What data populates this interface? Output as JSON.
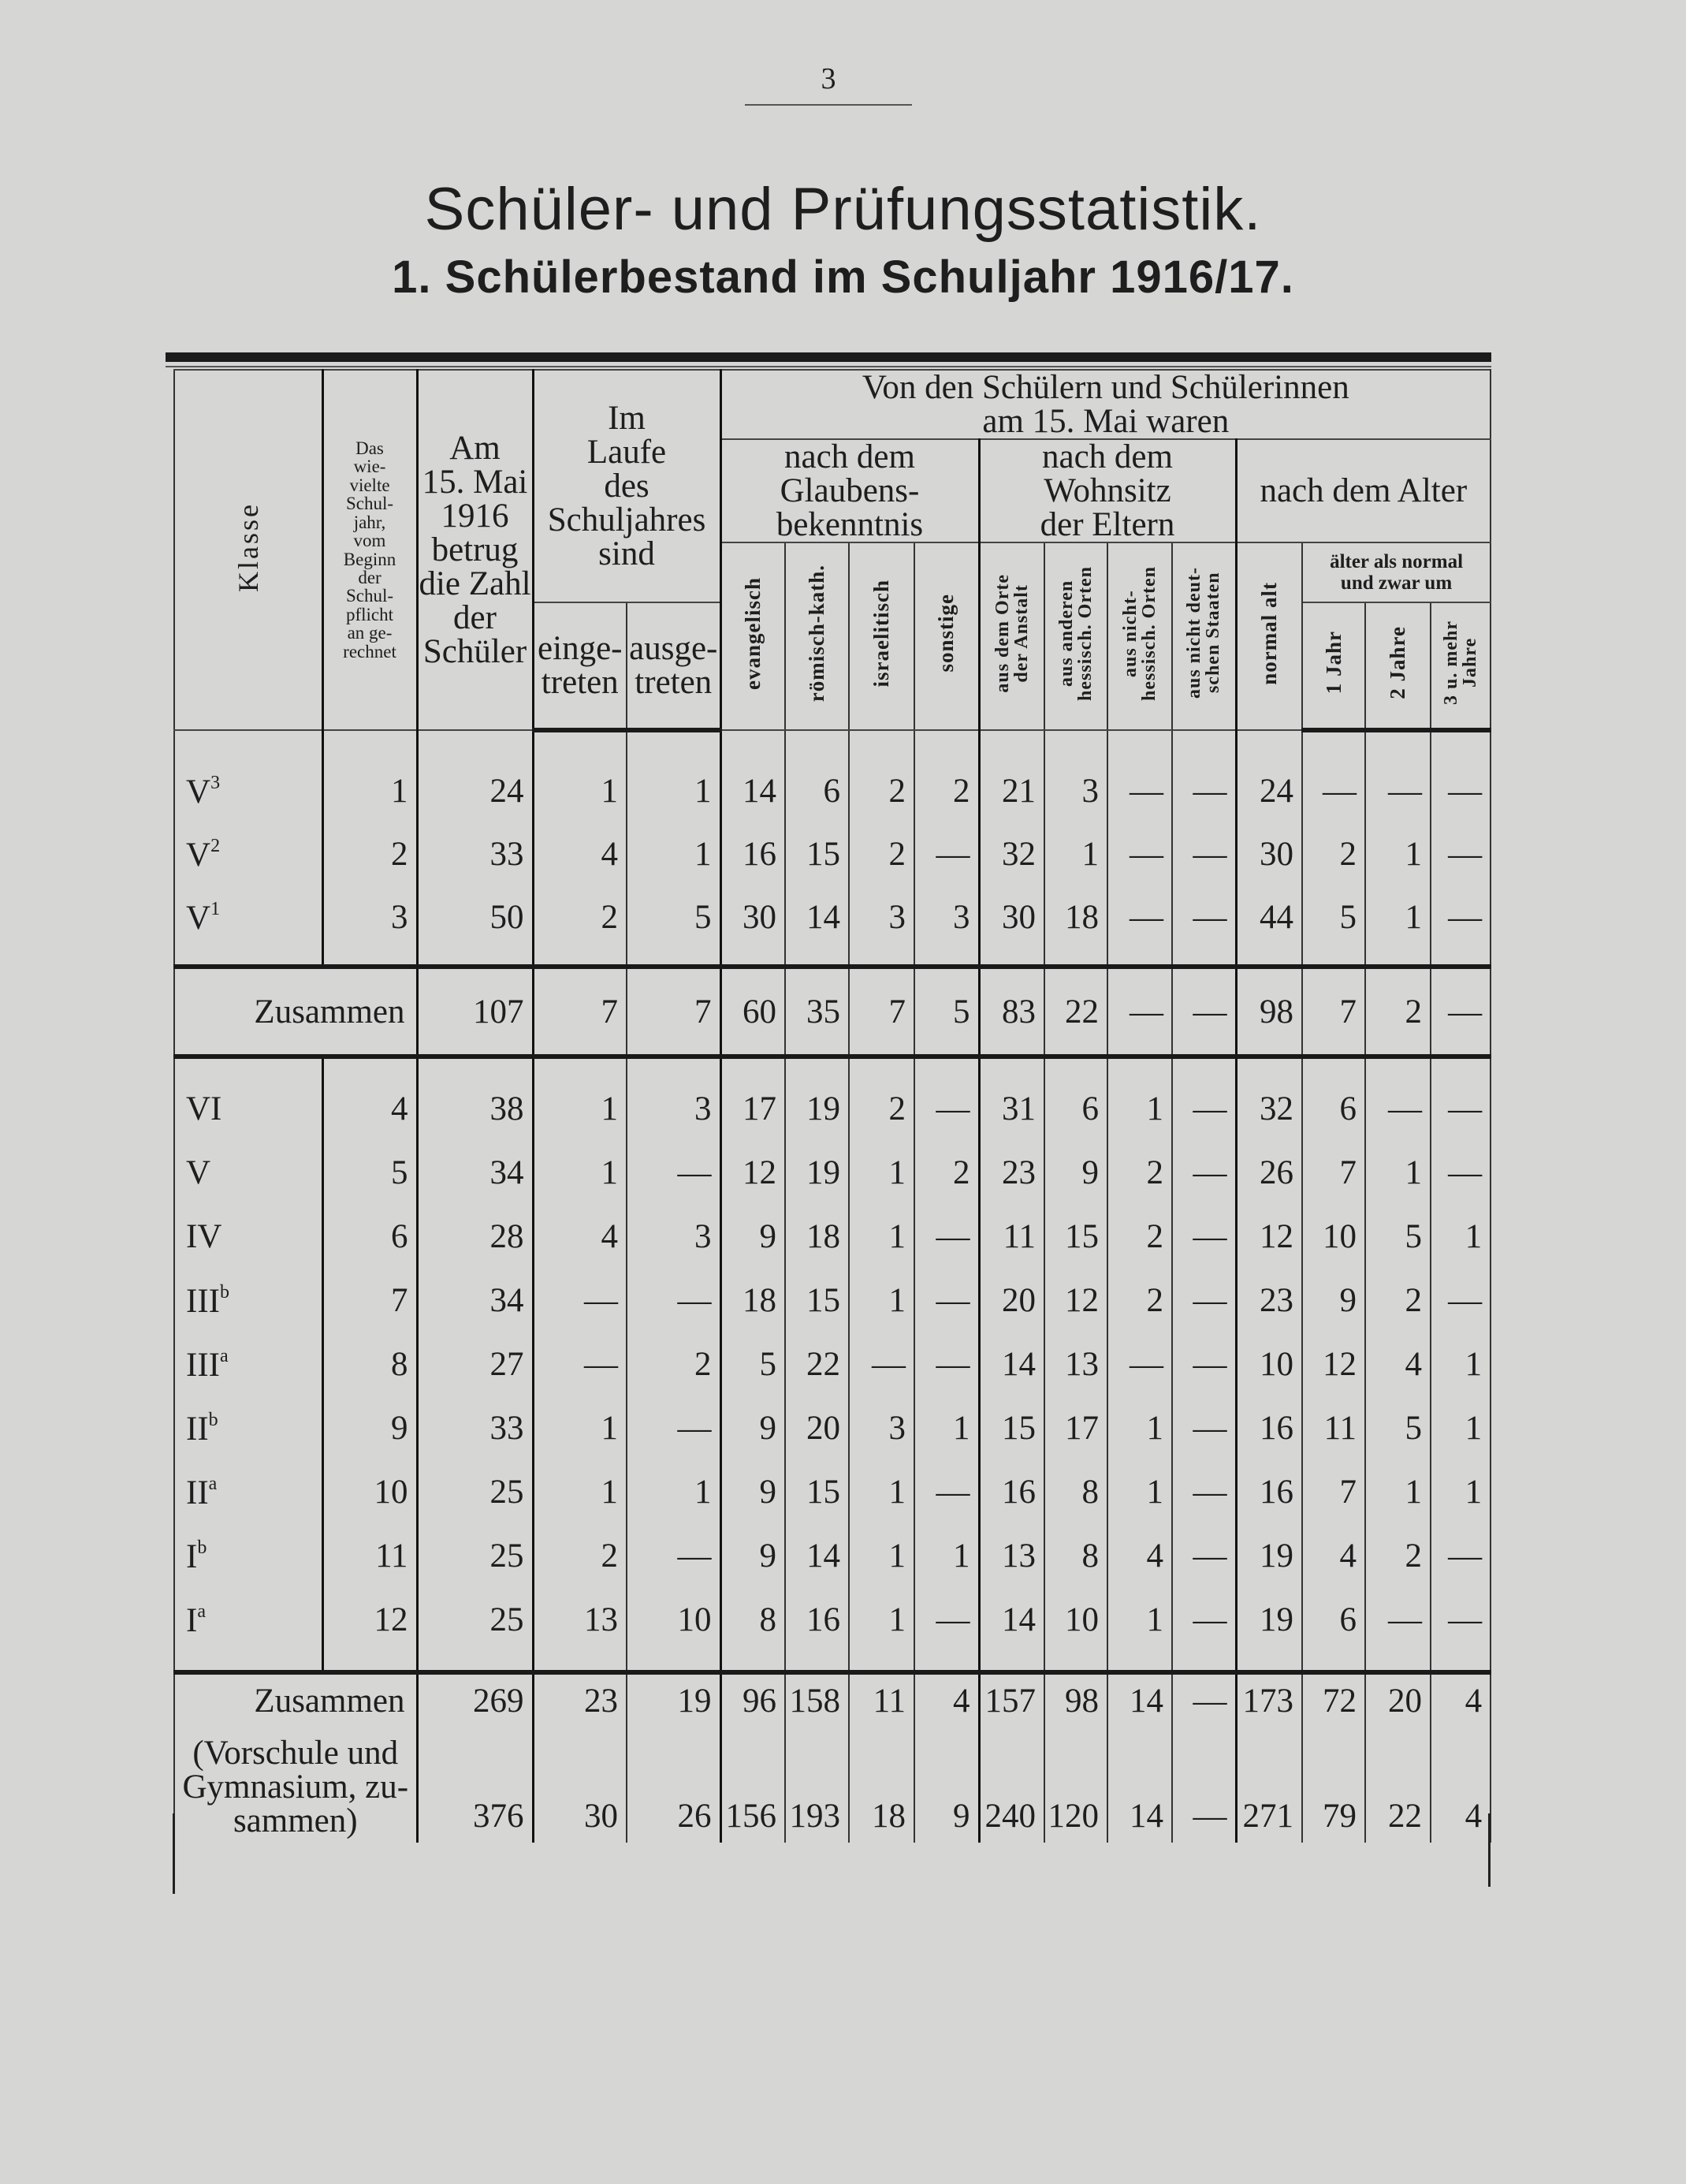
{
  "page_number": "3",
  "title": "Schüler- und Prüfungsstatistik.",
  "subtitle": "1. Schülerbestand im Schuljahr 1916/17.",
  "header": {
    "klasse": "Klasse",
    "schuljahr": "Das\nwie-\nvielte\nSchul-\njahr,\nvom\nBeginn\nder\nSchul-\npflicht\nan ge-\nrechnet",
    "zahl": "Am\n15. Mai\n1916\nbetrug\ndie Zahl\nder\nSchüler",
    "laufe": "Im\nLaufe\ndes\nSchuljahres\nsind",
    "eingetreten": "einge-\ntreten",
    "ausgetreten": "ausge-\ntreten",
    "von_den": "Von den Schülern und Schülerinnen\nam 15. Mai waren",
    "glauben": "nach dem Glaubens-\nbekenntnis",
    "wohnsitz": "nach dem Wohnsitz\nder Eltern",
    "alter": "nach dem Alter",
    "evangelisch": "evangelisch",
    "roemisch": "römisch-kath.",
    "israelitisch": "israelitisch",
    "sonstige": "sonstige",
    "orte": "aus dem Orte\nder Anstalt",
    "hessisch": "aus anderen\nhessisch. Orten",
    "nichthessisch": "aus nicht-\nhessisch. Orten",
    "nichtdeutsch": "aus nicht deut-\nschen Staaten",
    "normal": "normal alt",
    "aelter": "älter als normal\nund zwar um",
    "jahr1": "1 Jahr",
    "jahr2": "2 Jahre",
    "jahr3": "3 u. mehr\nJahre"
  },
  "vorschule": [
    {
      "klasse": "V",
      "sup": "3",
      "values": [
        "1",
        "24",
        "1",
        "1",
        "14",
        "6",
        "2",
        "2",
        "21",
        "3",
        "—",
        "—",
        "24",
        "—",
        "—",
        "—"
      ]
    },
    {
      "klasse": "V",
      "sup": "2",
      "values": [
        "2",
        "33",
        "4",
        "1",
        "16",
        "15",
        "2",
        "—",
        "32",
        "1",
        "—",
        "—",
        "30",
        "2",
        "1",
        "—"
      ]
    },
    {
      "klasse": "V",
      "sup": "1",
      "values": [
        "3",
        "50",
        "2",
        "5",
        "30",
        "14",
        "3",
        "3",
        "30",
        "18",
        "—",
        "—",
        "44",
        "5",
        "1",
        "—"
      ]
    }
  ],
  "vorschule_sum": {
    "label": "Zusammen",
    "values": [
      "107",
      "7",
      "7",
      "60",
      "35",
      "7",
      "5",
      "83",
      "22",
      "—",
      "—",
      "98",
      "7",
      "2",
      "—"
    ]
  },
  "gymnasium": [
    {
      "klasse": "VI",
      "sup": "",
      "values": [
        "4",
        "38",
        "1",
        "3",
        "17",
        "19",
        "2",
        "—",
        "31",
        "6",
        "1",
        "—",
        "32",
        "6",
        "—",
        "—"
      ]
    },
    {
      "klasse": "V",
      "sup": "",
      "values": [
        "5",
        "34",
        "1",
        "—",
        "12",
        "19",
        "1",
        "2",
        "23",
        "9",
        "2",
        "—",
        "26",
        "7",
        "1",
        "—"
      ]
    },
    {
      "klasse": "IV",
      "sup": "",
      "values": [
        "6",
        "28",
        "4",
        "3",
        "9",
        "18",
        "1",
        "—",
        "11",
        "15",
        "2",
        "—",
        "12",
        "10",
        "5",
        "1"
      ]
    },
    {
      "klasse": "III",
      "sup": "b",
      "values": [
        "7",
        "34",
        "—",
        "—",
        "18",
        "15",
        "1",
        "—",
        "20",
        "12",
        "2",
        "—",
        "23",
        "9",
        "2",
        "—"
      ]
    },
    {
      "klasse": "III",
      "sup": "a",
      "values": [
        "8",
        "27",
        "—",
        "2",
        "5",
        "22",
        "—",
        "—",
        "14",
        "13",
        "—",
        "—",
        "10",
        "12",
        "4",
        "1"
      ]
    },
    {
      "klasse": "II",
      "sup": "b",
      "values": [
        "9",
        "33",
        "1",
        "—",
        "9",
        "20",
        "3",
        "1",
        "15",
        "17",
        "1",
        "—",
        "16",
        "11",
        "5",
        "1"
      ]
    },
    {
      "klasse": "II",
      "sup": "a",
      "values": [
        "10",
        "25",
        "1",
        "1",
        "9",
        "15",
        "1",
        "—",
        "16",
        "8",
        "1",
        "—",
        "16",
        "7",
        "1",
        "1"
      ]
    },
    {
      "klasse": "I",
      "sup": "b",
      "values": [
        "11",
        "25",
        "2",
        "—",
        "9",
        "14",
        "1",
        "1",
        "13",
        "8",
        "4",
        "—",
        "19",
        "4",
        "2",
        "—"
      ]
    },
    {
      "klasse": "I",
      "sup": "a",
      "values": [
        "12",
        "25",
        "13",
        "10",
        "8",
        "16",
        "1",
        "—",
        "14",
        "10",
        "1",
        "—",
        "19",
        "6",
        "—",
        "—"
      ]
    }
  ],
  "gymnasium_sum": {
    "label": "Zusammen",
    "values": [
      "269",
      "23",
      "19",
      "96",
      "158",
      "11",
      "4",
      "157",
      "98",
      "14",
      "—",
      "173",
      "72",
      "20",
      "4"
    ]
  },
  "grand_total": {
    "label": "(Vorschule und\nGymnasium, zu-\nsammen)",
    "values": [
      "376",
      "30",
      "26",
      "156",
      "193",
      "18",
      "9",
      "240",
      "120",
      "14",
      "—",
      "271",
      "79",
      "22",
      "4"
    ]
  }
}
